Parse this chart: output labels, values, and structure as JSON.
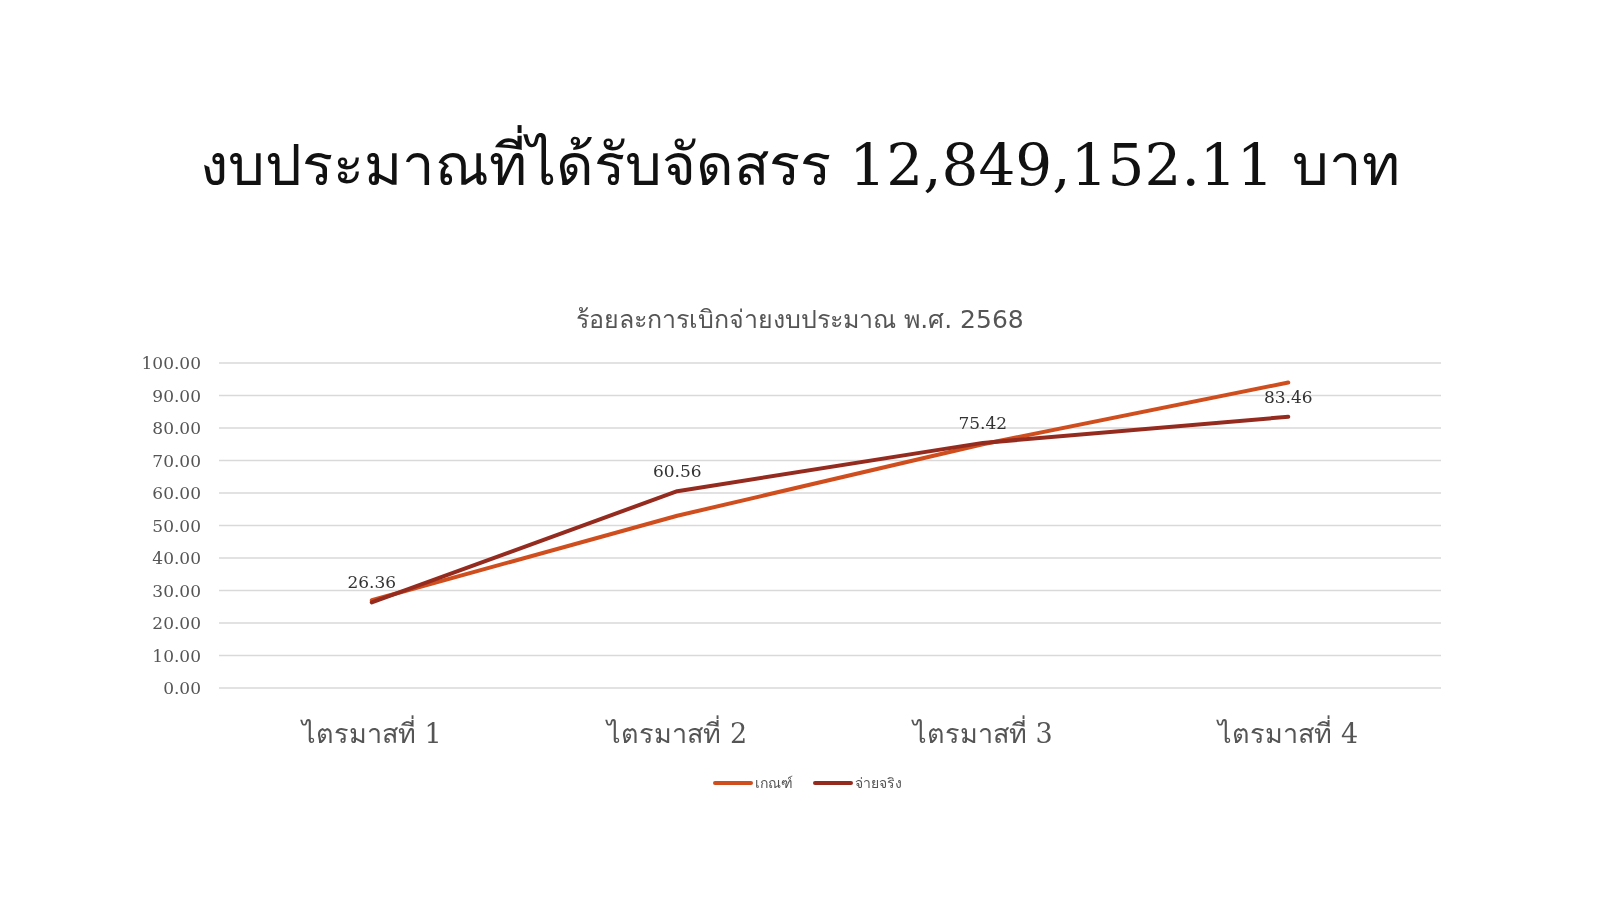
{
  "chart_data": {
    "type": "line",
    "title": "งบประมาณที่ได้รับจัดสรร 12,849,152.11 บาท",
    "subtitle": "ร้อยละการเบิกจ่ายงบประมาณ พ.ศ. 2568",
    "categories": [
      "ไตรมาสที่ 1",
      "ไตรมาสที่ 2",
      "ไตรมาสที่ 3",
      "ไตรมาสที่ 4"
    ],
    "series": [
      {
        "name": "เกณฑ์",
        "color": "#d04e1e",
        "values": [
          27,
          53,
          75,
          94
        ]
      },
      {
        "name": "จ่ายจริง",
        "color": "#952b1f",
        "values": [
          26.36,
          60.56,
          75.42,
          83.46
        ],
        "value_labels": [
          "26.36",
          "60.56",
          "75.42",
          "83.46"
        ]
      }
    ],
    "ylim": [
      0,
      100
    ],
    "yticks": [
      {
        "value": 0,
        "label": "0.00"
      },
      {
        "value": 10,
        "label": "10.00"
      },
      {
        "value": 20,
        "label": "20.00"
      },
      {
        "value": 30,
        "label": "30.00"
      },
      {
        "value": 40,
        "label": "40.00"
      },
      {
        "value": 50,
        "label": "50.00"
      },
      {
        "value": 60,
        "label": "60.00"
      },
      {
        "value": 70,
        "label": "70.00"
      },
      {
        "value": 80,
        "label": "80.00"
      },
      {
        "value": 90,
        "label": "90.00"
      },
      {
        "value": 100,
        "label": "100.00"
      }
    ],
    "grid": "y",
    "legend": "bottom"
  }
}
